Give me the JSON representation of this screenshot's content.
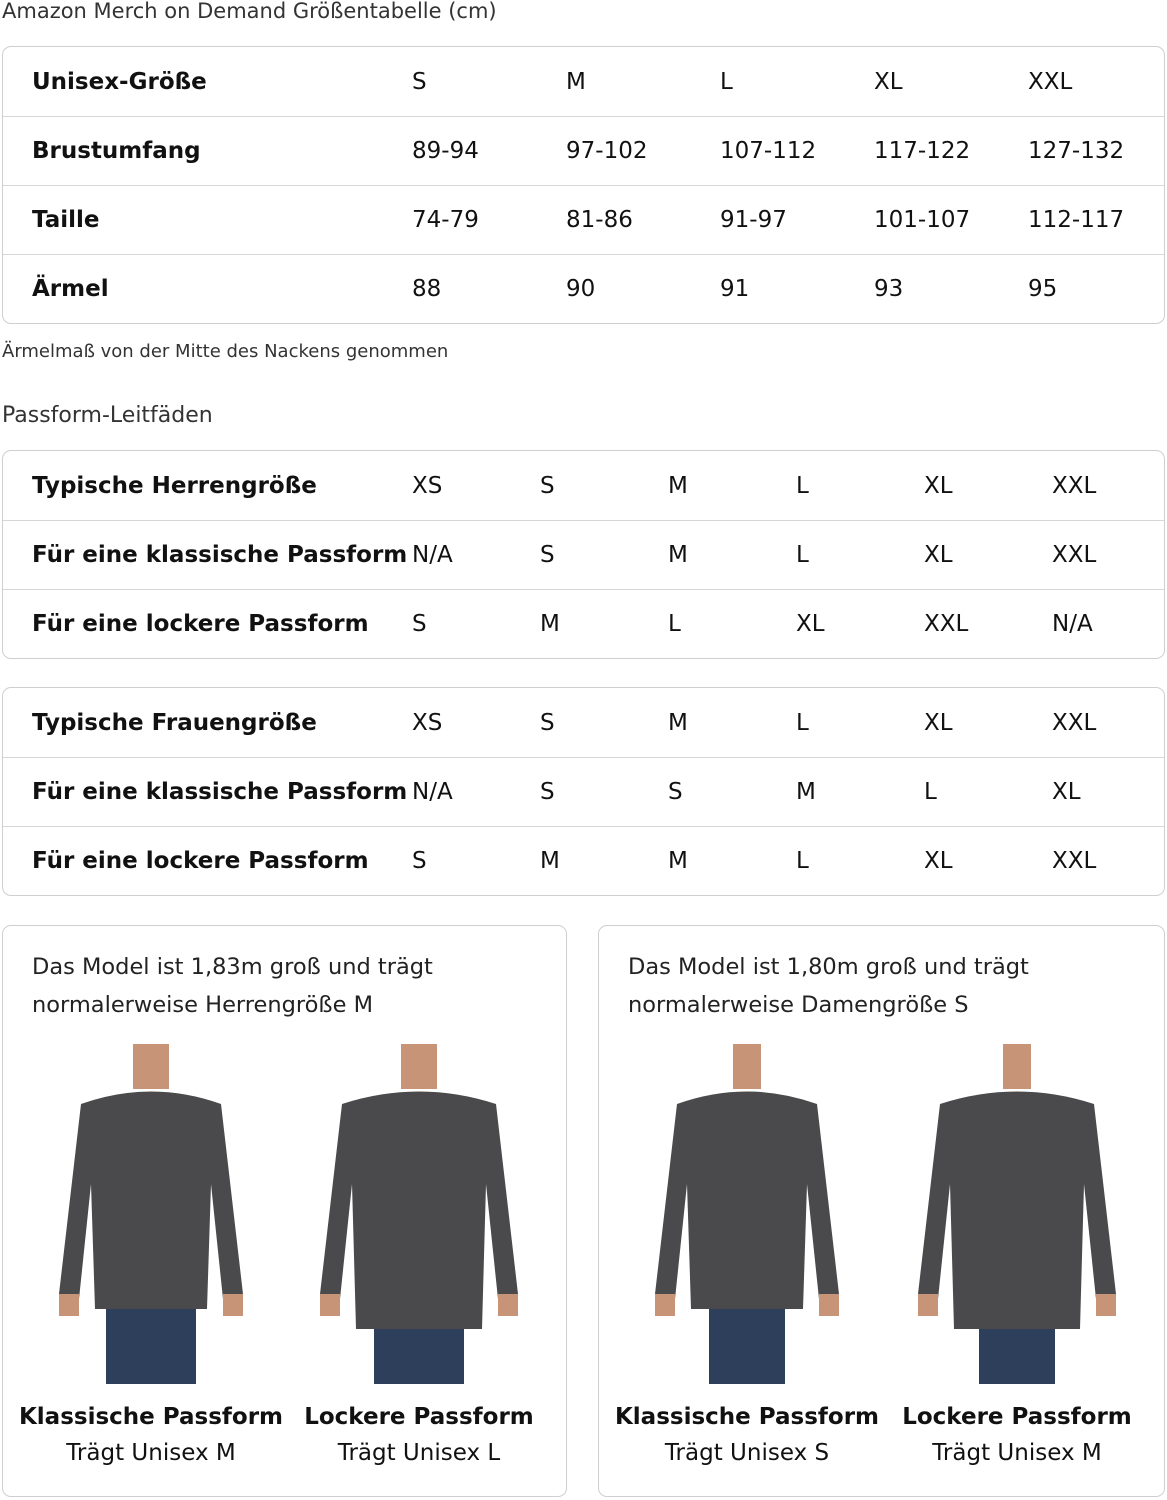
{
  "title": "Amazon Merch on Demand Größentabelle (cm)",
  "unisex_table": {
    "rows": [
      {
        "label": "Unisex-Größe",
        "values": [
          "S",
          "M",
          "L",
          "XL",
          "XXL"
        ]
      },
      {
        "label": "Brustumfang",
        "values": [
          "89-94",
          "97-102",
          "107-112",
          "117-122",
          "127-132"
        ]
      },
      {
        "label": "Taille",
        "values": [
          "74-79",
          "81-86",
          "91-97",
          "101-107",
          "112-117"
        ]
      },
      {
        "label": "Ärmel",
        "values": [
          "88",
          "90",
          "91",
          "93",
          "95"
        ]
      }
    ]
  },
  "note": "Ärmelmaß von der Mitte des Nackens genommen",
  "fit_heading": "Passform-Leitfäden",
  "men_table": {
    "rows": [
      {
        "label": "Typische Herrengröße",
        "values": [
          "XS",
          "S",
          "M",
          "L",
          "XL",
          "XXL"
        ]
      },
      {
        "label": "Für eine klassische Passform",
        "values": [
          "N/A",
          "S",
          "M",
          "L",
          "XL",
          "XXL"
        ]
      },
      {
        "label": "Für eine lockere Passform",
        "values": [
          "S",
          "M",
          "L",
          "XL",
          "XXL",
          "N/A"
        ]
      }
    ]
  },
  "women_table": {
    "rows": [
      {
        "label": "Typische Frauengröße",
        "values": [
          "XS",
          "S",
          "M",
          "L",
          "XL",
          "XXL"
        ]
      },
      {
        "label": "Für eine klassische Passform",
        "values": [
          "N/A",
          "S",
          "S",
          "M",
          "L",
          "XL"
        ]
      },
      {
        "label": "Für eine lockere Passform",
        "values": [
          "S",
          "M",
          "M",
          "L",
          "XL",
          "XXL"
        ]
      }
    ]
  },
  "cards": [
    {
      "text1": "Das Model ist 1,83m groß und trägt",
      "text2": "normalerweise Herrengröße M",
      "figures": [
        {
          "fit": "Klassische Passform",
          "wears": "Trägt Unisex M"
        },
        {
          "fit": "Lockere Passform",
          "wears": "Trägt Unisex L"
        }
      ]
    },
    {
      "text1": "Das Model ist 1,80m groß und trägt",
      "text2": "normalerweise Damengröße S",
      "figures": [
        {
          "fit": "Klassische Passform",
          "wears": "Trägt Unisex S"
        },
        {
          "fit": "Lockere Passform",
          "wears": "Trägt Unisex M"
        }
      ]
    }
  ],
  "colors": {
    "shirt": "#4a4a4c",
    "jeans": "#2e3f5c",
    "skin": "#c89478",
    "border": "#cfcfcf"
  }
}
